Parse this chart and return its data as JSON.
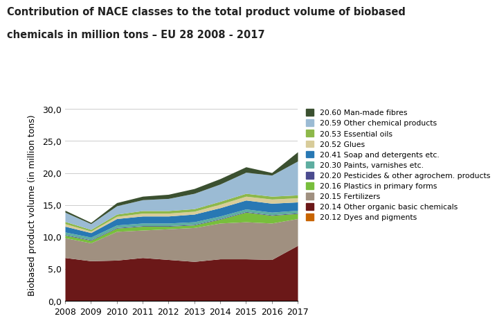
{
  "years": [
    2008,
    2009,
    2010,
    2011,
    2012,
    2013,
    2014,
    2015,
    2016,
    2017
  ],
  "title_line1": "Contribution of NACE classes to the total product volume of biobased",
  "title_line2": "chemicals in million tons – EU 28 2008 - 2017",
  "ylabel": "Biobased product volume (in million tons)",
  "yticks": [
    0.0,
    5.0,
    10.0,
    15.0,
    20.0,
    25.0,
    30.0
  ],
  "ylim": [
    0,
    30
  ],
  "series": [
    {
      "label": "20.12 Dyes and pigments",
      "color": "#C86400",
      "values": [
        0.05,
        0.05,
        0.05,
        0.05,
        0.05,
        0.05,
        0.05,
        0.05,
        0.05,
        0.05
      ]
    },
    {
      "label": "20.14 Other organic basic chemicals",
      "color": "#6B1818",
      "values": [
        6.7,
        6.2,
        6.3,
        6.7,
        6.4,
        6.1,
        6.5,
        6.5,
        6.4,
        8.6
      ]
    },
    {
      "label": "20.15 Fertilizers",
      "color": "#A09080",
      "values": [
        3.1,
        2.8,
        4.5,
        4.3,
        4.8,
        5.3,
        5.6,
        5.8,
        5.7,
        4.2
      ]
    },
    {
      "label": "20.16 Plastics in primary forms",
      "color": "#78BE3C",
      "values": [
        0.4,
        0.4,
        0.5,
        0.6,
        0.4,
        0.4,
        0.6,
        1.5,
        1.2,
        0.8
      ]
    },
    {
      "label": "20.20 Pesticides & other agrochem. products",
      "color": "#4B4B8F",
      "values": [
        0.1,
        0.1,
        0.1,
        0.1,
        0.1,
        0.1,
        0.1,
        0.1,
        0.1,
        0.1
      ]
    },
    {
      "label": "20.30 Paints, varnishes etc.",
      "color": "#5EADA0",
      "values": [
        0.4,
        0.4,
        0.4,
        0.4,
        0.4,
        0.4,
        0.4,
        0.4,
        0.4,
        0.4
      ]
    },
    {
      "label": "20.41 Soap and detergents etc.",
      "color": "#2878B4",
      "values": [
        0.9,
        0.7,
        1.0,
        1.1,
        1.1,
        1.2,
        1.3,
        1.4,
        1.4,
        1.3
      ]
    },
    {
      "label": "20.52 Glues",
      "color": "#D8CC9A",
      "values": [
        0.4,
        0.25,
        0.35,
        0.45,
        0.45,
        0.45,
        0.55,
        0.6,
        0.65,
        0.65
      ]
    },
    {
      "label": "20.53 Essential oils",
      "color": "#8DB84A",
      "values": [
        0.35,
        0.25,
        0.35,
        0.4,
        0.4,
        0.4,
        0.45,
        0.45,
        0.45,
        0.45
      ]
    },
    {
      "label": "20.59 Other chemical products",
      "color": "#9BBBD4",
      "values": [
        1.45,
        0.9,
        1.3,
        1.7,
        1.9,
        2.4,
        2.7,
        3.3,
        3.3,
        5.3
      ]
    },
    {
      "label": "20.60 Man-made fibres",
      "color": "#3B5030",
      "values": [
        0.3,
        0.2,
        0.5,
        0.55,
        0.65,
        0.75,
        0.85,
        0.85,
        0.4,
        1.45
      ]
    }
  ],
  "background_color": "#ffffff",
  "grid_color": "#CCCCCC",
  "tick_fontsize": 9,
  "legend_fontsize": 7.8,
  "ylabel_fontsize": 9,
  "title_fontsize": 10.5
}
